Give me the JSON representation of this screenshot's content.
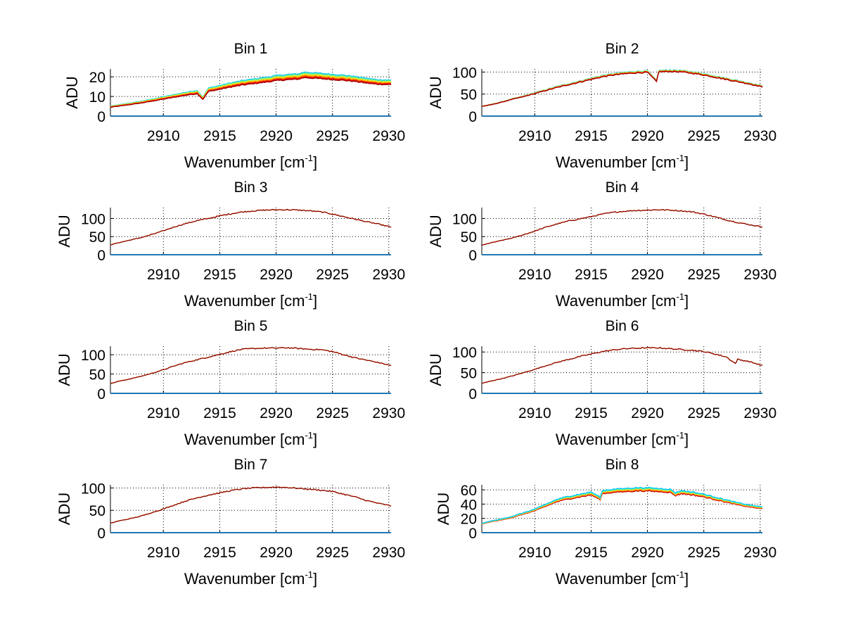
{
  "chart_data": {
    "type": "line",
    "layout": "4x2 grid of subplots",
    "grid": true,
    "trace_colormap": [
      "#00c8ff",
      "#40e0c0",
      "#80f080",
      "#d0f040",
      "#ffd000",
      "#ff9000",
      "#ff4000",
      "#e00000",
      "#a00000"
    ],
    "baseline_color": "#1f77b4",
    "panels": [
      {
        "title": "Bin 1",
        "xlabel": "Wavenumber [cm",
        "xlabel_sup": "-1",
        "xlabel_close": "]",
        "ylabel": "ADU",
        "xlim": [
          2905.3,
          2930.2
        ],
        "ylim": [
          0,
          24
        ],
        "xticks": [
          2910,
          2915,
          2920,
          2925,
          2930
        ],
        "yticks": [
          0,
          10,
          20
        ],
        "x": [
          2905.3,
          2906,
          2907,
          2908,
          2909,
          2910,
          2911,
          2912,
          2913,
          2913.5,
          2914,
          2915,
          2916,
          2917,
          2918,
          2919,
          2920,
          2921,
          2922,
          2922.5,
          2923,
          2924,
          2925,
          2926,
          2927,
          2928,
          2929,
          2930.2
        ],
        "y": [
          4.5,
          5,
          5.8,
          6.6,
          7.6,
          8.6,
          9.6,
          10.6,
          11.4,
          8.5,
          12.5,
          13.6,
          14.8,
          15.8,
          16.5,
          17.2,
          18,
          18.5,
          18.8,
          19.6,
          19.4,
          19,
          18.6,
          18.2,
          17.6,
          16.8,
          16.2,
          16
        ],
        "trace_spread": 3.5,
        "spread_direction": "up"
      },
      {
        "title": "Bin 2",
        "xlabel": "Wavenumber [cm",
        "xlabel_sup": "-1",
        "xlabel_close": "]",
        "ylabel": "ADU",
        "xlim": [
          2905.3,
          2930.2
        ],
        "ylim": [
          0,
          107
        ],
        "xticks": [
          2910,
          2915,
          2920,
          2925,
          2930
        ],
        "yticks": [
          0,
          50,
          100
        ],
        "x": [
          2905.3,
          2906,
          2907,
          2908,
          2909,
          2910,
          2911,
          2912,
          2913,
          2914,
          2915,
          2916,
          2917,
          2918,
          2919,
          2920,
          2920.8,
          2921,
          2922,
          2923,
          2924,
          2925,
          2926,
          2927,
          2928,
          2929,
          2930.2
        ],
        "y": [
          22,
          25,
          31,
          38,
          44,
          51,
          58,
          65,
          71,
          77,
          83,
          89,
          93,
          96,
          98,
          99,
          78,
          100,
          101,
          100,
          97,
          93,
          88,
          83,
          78,
          73,
          66
        ],
        "trace_spread": 4,
        "spread_direction": "up"
      },
      {
        "title": "Bin 3",
        "xlabel": "Wavenumber [cm",
        "xlabel_sup": "-1",
        "xlabel_close": "]",
        "ylabel": "ADU",
        "xlim": [
          2905.3,
          2930.2
        ],
        "ylim": [
          0,
          130
        ],
        "xticks": [
          2910,
          2915,
          2920,
          2925,
          2930
        ],
        "yticks": [
          0,
          50,
          100
        ],
        "x": [
          2905.3,
          2906,
          2907,
          2908,
          2909,
          2910,
          2911,
          2912,
          2913,
          2914,
          2915,
          2916,
          2917,
          2918,
          2919,
          2920,
          2921,
          2922,
          2923,
          2924,
          2925,
          2926,
          2927,
          2928,
          2929,
          2930.2
        ],
        "y": [
          27,
          33,
          40,
          47,
          56,
          66,
          77,
          86,
          94,
          100,
          107,
          113,
          118,
          121,
          123,
          124,
          124,
          123,
          121,
          118,
          112,
          105,
          98,
          91,
          85,
          76
        ],
        "trace_spread": 0,
        "spread_direction": "none"
      },
      {
        "title": "Bin 4",
        "xlabel": "Wavenumber [cm",
        "xlabel_sup": "-1",
        "xlabel_close": "]",
        "ylabel": "ADU",
        "xlim": [
          2905.3,
          2930.2
        ],
        "ylim": [
          0,
          130
        ],
        "xticks": [
          2910,
          2915,
          2920,
          2925,
          2930
        ],
        "yticks": [
          0,
          50,
          100
        ],
        "x": [
          2905.3,
          2906,
          2907,
          2908,
          2909,
          2910,
          2911,
          2912,
          2913,
          2914,
          2915,
          2916,
          2917,
          2918,
          2919,
          2920,
          2921,
          2922,
          2923,
          2924,
          2925,
          2926,
          2927,
          2928,
          2929,
          2930.2
        ],
        "y": [
          26,
          32,
          39,
          46,
          55,
          65,
          76,
          85,
          93,
          99,
          105,
          112,
          117,
          120,
          122,
          123,
          124,
          123,
          121,
          118,
          112,
          104,
          96,
          89,
          83,
          77
        ],
        "trace_spread": 0,
        "spread_direction": "none"
      },
      {
        "title": "Bin 5",
        "xlabel": "Wavenumber [cm",
        "xlabel_sup": "-1",
        "xlabel_close": "]",
        "ylabel": "ADU",
        "xlim": [
          2905.3,
          2930.2
        ],
        "ylim": [
          0,
          122
        ],
        "xticks": [
          2910,
          2915,
          2920,
          2925,
          2930
        ],
        "yticks": [
          0,
          50,
          100
        ],
        "x": [
          2905.3,
          2906,
          2907,
          2908,
          2909,
          2910,
          2911,
          2912,
          2913,
          2914,
          2915,
          2916,
          2917,
          2918,
          2919,
          2920,
          2921,
          2922,
          2923,
          2924,
          2925,
          2926,
          2927,
          2928,
          2929,
          2930.2
        ],
        "y": [
          25,
          31,
          37,
          44,
          52,
          61,
          71,
          80,
          87,
          94,
          101,
          108,
          114,
          116,
          117,
          117,
          118,
          116,
          114,
          113,
          108,
          100,
          92,
          86,
          80,
          72
        ],
        "trace_spread": 0,
        "spread_direction": "none"
      },
      {
        "title": "Bin 6",
        "xlabel": "Wavenumber [cm",
        "xlabel_sup": "-1",
        "xlabel_close": "]",
        "ylabel": "ADU",
        "xlim": [
          2905.3,
          2930.2
        ],
        "ylim": [
          0,
          114
        ],
        "xticks": [
          2910,
          2915,
          2920,
          2925,
          2930
        ],
        "yticks": [
          0,
          50,
          100
        ],
        "x": [
          2905.3,
          2906,
          2907,
          2908,
          2909,
          2910,
          2911,
          2912,
          2913,
          2914,
          2915,
          2916,
          2917,
          2918,
          2919,
          2920,
          2921,
          2922,
          2923,
          2924,
          2925,
          2926,
          2927,
          2927.8,
          2928,
          2929,
          2930.2
        ],
        "y": [
          24,
          29,
          35,
          42,
          50,
          58,
          67,
          75,
          82,
          89,
          95,
          101,
          105,
          108,
          109,
          110,
          110,
          108,
          106,
          104,
          101,
          95,
          88,
          72,
          82,
          77,
          67
        ],
        "trace_spread": 0,
        "spread_direction": "none"
      },
      {
        "title": "Bin 7",
        "xlabel": "Wavenumber [cm",
        "xlabel_sup": "-1",
        "xlabel_close": "]",
        "ylabel": "ADU",
        "xlim": [
          2905.3,
          2930.2
        ],
        "ylim": [
          0,
          107
        ],
        "xticks": [
          2910,
          2915,
          2920,
          2925,
          2930
        ],
        "yticks": [
          0,
          50,
          100
        ],
        "x": [
          2905.3,
          2906,
          2907,
          2908,
          2909,
          2910,
          2911,
          2912,
          2913,
          2914,
          2915,
          2916,
          2917,
          2918,
          2919,
          2920,
          2921,
          2922,
          2923,
          2924,
          2925,
          2926,
          2927,
          2928,
          2929,
          2930.2
        ],
        "y": [
          21,
          26,
          31,
          37,
          45,
          53,
          62,
          71,
          78,
          84,
          89,
          94,
          98,
          100,
          101,
          102,
          101,
          99,
          97,
          95,
          92,
          86,
          80,
          72,
          66,
          60
        ],
        "trace_spread": 0,
        "spread_direction": "none"
      },
      {
        "title": "Bin 8",
        "xlabel": "Wavenumber [cm",
        "xlabel_sup": "-1",
        "xlabel_close": "]",
        "ylabel": "ADU",
        "xlim": [
          2905.3,
          2930.2
        ],
        "ylim": [
          0,
          67
        ],
        "xticks": [
          2910,
          2915,
          2920,
          2925,
          2930
        ],
        "yticks": [
          0,
          20,
          40,
          60
        ],
        "x": [
          2905.3,
          2906,
          2907,
          2908,
          2909,
          2910,
          2911,
          2912,
          2913,
          2914,
          2915,
          2915.8,
          2916,
          2917,
          2918,
          2919,
          2920,
          2921,
          2922,
          2922.5,
          2923,
          2924,
          2925,
          2926,
          2927,
          2928,
          2929,
          2930.2
        ],
        "y": [
          13,
          16,
          19,
          23,
          28,
          33,
          40,
          47,
          51,
          54,
          57,
          50,
          59,
          61,
          62,
          63,
          63,
          62,
          61,
          56,
          59,
          57,
          54,
          50,
          46,
          42,
          39,
          36
        ],
        "trace_spread": 5,
        "spread_direction": "down"
      }
    ]
  }
}
